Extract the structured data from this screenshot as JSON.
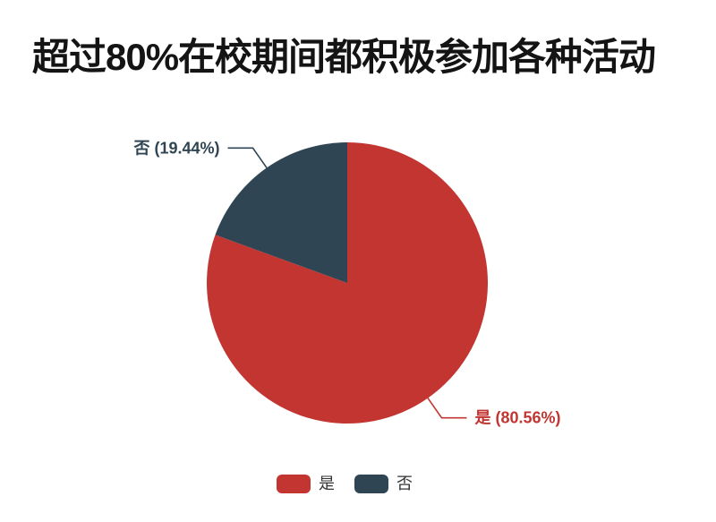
{
  "title": {
    "text": "超过80%在校期间都积极参加各种活动",
    "color": "#141414"
  },
  "chart_data": {
    "type": "pie",
    "title": "超过80%在校期间都积极参加各种活动",
    "categories": [
      "是",
      "否"
    ],
    "values": [
      80.56,
      19.44
    ],
    "unit": "percent",
    "slice_labels": [
      "是 (80.56%)",
      "否 (19.44%)"
    ],
    "colors": [
      "#c23531",
      "#2f4554"
    ],
    "start_angle": "top",
    "direction": "clockwise",
    "legend_position": "bottom-center",
    "legend_text_color": "#333333",
    "background": "#ffffff"
  }
}
